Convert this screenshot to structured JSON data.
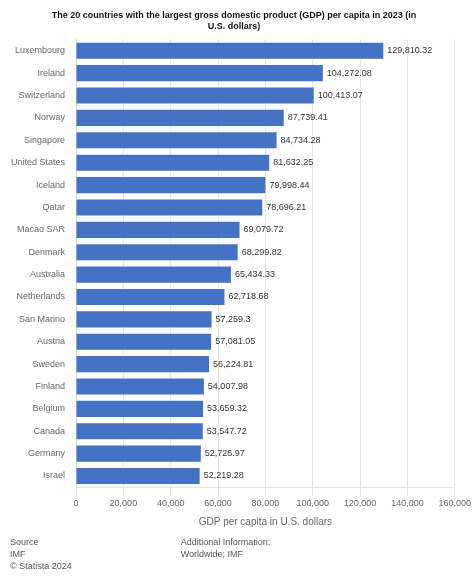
{
  "chart_data": {
    "type": "bar",
    "orientation": "horizontal",
    "title": [
      "The 20 countries with the largest gross domestic product (GDP) per capita in 2023 (in",
      "U.S. dollars)"
    ],
    "xlabel": "GDP per capita in U.S. dollars",
    "categories": [
      "Luxembourg",
      "Ireland",
      "Switzerland",
      "Norway",
      "Singapore",
      "United States",
      "Iceland",
      "Qatar",
      "Macao SAR",
      "Denmark",
      "Australia",
      "Netherlands",
      "San Marino",
      "Austria",
      "Sweden",
      "Finland",
      "Belgium",
      "Canada",
      "Germany",
      "Israel"
    ],
    "values": [
      129810.32,
      104272.08,
      100413.07,
      87739.41,
      84734.28,
      81632.25,
      79998.44,
      78696.21,
      69079.72,
      68299.82,
      65434.33,
      62718.68,
      57259.3,
      57081.05,
      56224.81,
      54007.98,
      53659.32,
      53547.72,
      52726.97,
      52219.28
    ],
    "value_labels": [
      "129,810.32",
      "104,272.08",
      "100,413.07",
      "87,739.41",
      "84,734.28",
      "81,632.25",
      "79,998.44",
      "78,696.21",
      "69,079.72",
      "68,299.82",
      "65,434.33",
      "62,718.68",
      "57,259.3",
      "57,081.05",
      "56,224.81",
      "54,007.98",
      "53,659.32",
      "53,547.72",
      "52,726.97",
      "52,219.28"
    ],
    "data_labels": true,
    "color": "#4472c4",
    "xlim": [
      0,
      160000
    ],
    "xticks": [
      0,
      {
        "value": 20000,
        "label": "20,000"
      },
      {
        "value": 40000,
        "label": "40,000"
      },
      {
        "value": 60000,
        "label": "60,000"
      },
      {
        "value": 80000,
        "label": "80,000"
      },
      {
        "value": 100000,
        "label": "100,000"
      },
      {
        "value": 120000,
        "label": "120,000"
      },
      {
        "value": 140000,
        "label": "140,000"
      },
      {
        "value": 160000,
        "label": "160,000"
      }
    ],
    "grid": true,
    "annotations": [
      "Source\nIMF\n© Statista 2024",
      "Additional Information:\nWorldwide; IMF"
    ]
  }
}
